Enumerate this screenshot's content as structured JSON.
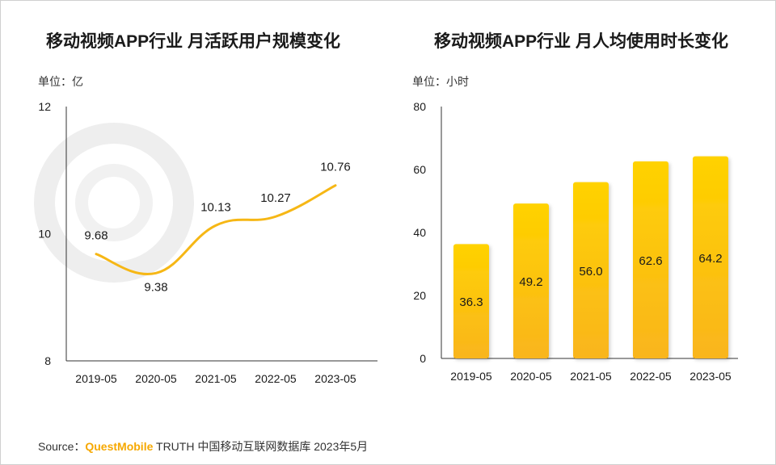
{
  "colors": {
    "line": "#f6b715",
    "bar_top": "#ffd200",
    "bar_bottom": "#f9b51d",
    "axis": "#333333",
    "text": "#1a1a1a",
    "brand": "#f6a800"
  },
  "source": {
    "label": "Source：",
    "brand": "QuestMobile",
    "rest": " TRUTH 中国移动互联网数据库 2023年5月"
  },
  "chart_data": [
    {
      "type": "line",
      "title": "移动视频APP行业 月活跃用户规模变化",
      "unit": "单位：亿",
      "categories": [
        "2019-05",
        "2020-05",
        "2021-05",
        "2022-05",
        "2023-05"
      ],
      "series": [
        {
          "values": [
            9.68,
            9.38,
            10.13,
            10.27,
            10.76
          ]
        }
      ],
      "value_labels": [
        "9.68",
        "9.38",
        "10.13",
        "10.27",
        "10.76"
      ],
      "ylim": [
        8,
        12
      ],
      "yticks": [
        8,
        10,
        12
      ],
      "grid": false,
      "legend": "none"
    },
    {
      "type": "bar",
      "title": "移动视频APP行业 月人均使用时长变化",
      "unit": "单位：小时",
      "categories": [
        "2019-05",
        "2020-05",
        "2021-05",
        "2022-05",
        "2023-05"
      ],
      "series": [
        {
          "values": [
            36.3,
            49.2,
            56.0,
            62.6,
            64.2
          ]
        }
      ],
      "value_labels": [
        "36.3",
        "49.2",
        "56.0",
        "62.6",
        "64.2"
      ],
      "ylim": [
        0,
        80
      ],
      "yticks": [
        0,
        20,
        40,
        60,
        80
      ],
      "grid": false,
      "legend": "none"
    }
  ]
}
